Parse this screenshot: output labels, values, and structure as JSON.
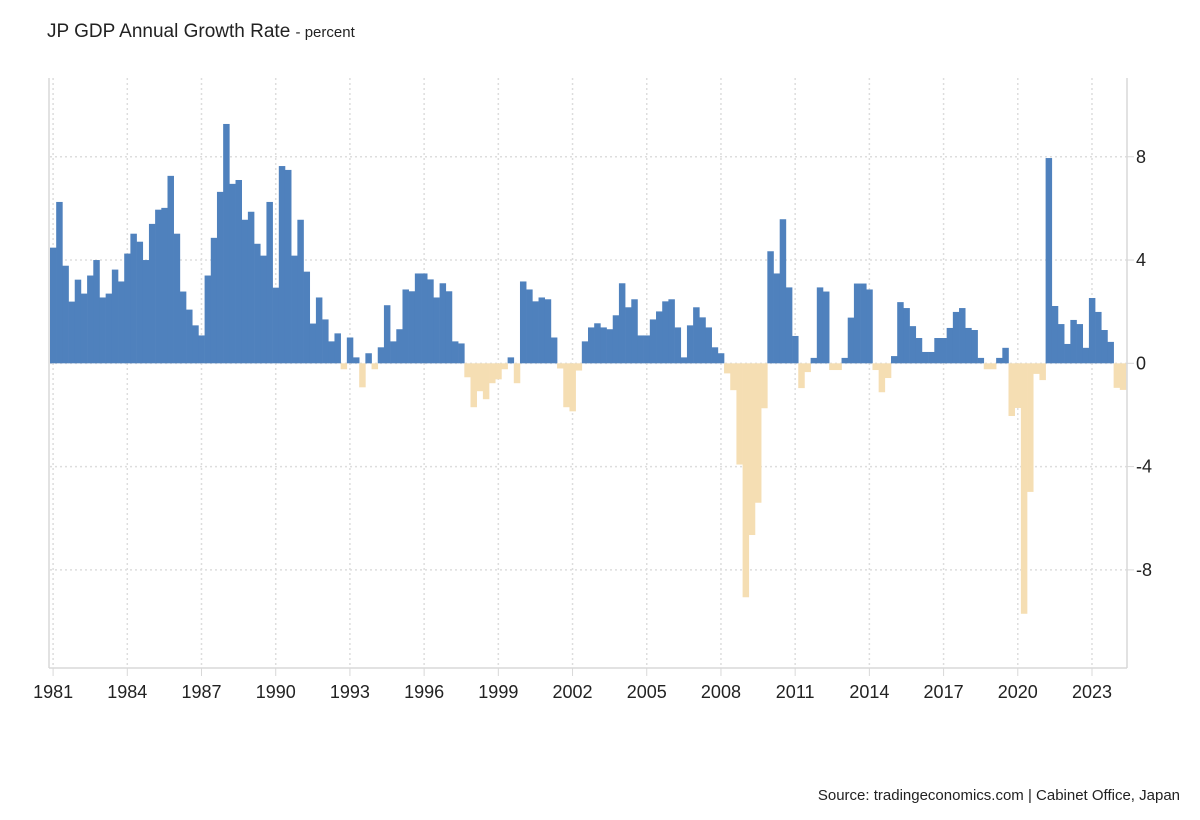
{
  "chart_data": {
    "type": "bar",
    "title": "JP GDP Annual Growth Rate",
    "unit": "- percent",
    "source": "Source: tradingeconomics.com | Cabinet Office, Japan",
    "frequency": "quarterly",
    "start_year": 1981,
    "start_quarter": 1,
    "ylim": [
      -11.8,
      11.05
    ],
    "yticks": [
      8,
      4,
      0,
      -4,
      -8
    ],
    "xticks": [
      "1981",
      "1984",
      "1987",
      "1990",
      "1993",
      "1996",
      "1999",
      "2002",
      "2005",
      "2008",
      "2011",
      "2014",
      "2017",
      "2020",
      "2023"
    ],
    "grid": true,
    "colors": {
      "positive": "#4f81bd",
      "negative": "#f5deb3",
      "grid": "#dddddd",
      "axis": "#d8d8d8"
    },
    "values": [
      4.48,
      6.25,
      3.78,
      2.39,
      3.24,
      2.7,
      3.4,
      4.0,
      2.55,
      2.7,
      3.63,
      3.17,
      4.25,
      5.02,
      4.71,
      4.0,
      5.4,
      5.95,
      6.02,
      7.26,
      5.02,
      2.78,
      2.08,
      1.47,
      1.08,
      3.4,
      4.86,
      6.64,
      9.27,
      6.95,
      7.1,
      5.56,
      5.87,
      4.63,
      4.17,
      6.25,
      2.93,
      7.64,
      7.49,
      4.17,
      5.56,
      3.55,
      1.54,
      2.55,
      1.7,
      0.85,
      1.16,
      -0.23,
      1.0,
      0.23,
      -0.93,
      0.39,
      -0.23,
      0.62,
      2.25,
      0.85,
      1.32,
      2.86,
      2.79,
      3.48,
      3.48,
      3.25,
      2.55,
      3.1,
      2.79,
      0.85,
      0.77,
      -0.54,
      -1.7,
      -1.08,
      -1.39,
      -0.77,
      -0.62,
      -0.23,
      0.23,
      -0.77,
      3.17,
      2.86,
      2.4,
      2.55,
      2.48,
      1.0,
      -0.2,
      -1.7,
      -1.86,
      -0.28,
      0.85,
      1.39,
      1.55,
      1.39,
      1.32,
      1.86,
      3.1,
      2.17,
      2.48,
      1.08,
      1.08,
      1.7,
      2.01,
      2.4,
      2.48,
      1.39,
      0.23,
      1.47,
      2.17,
      1.78,
      1.39,
      0.62,
      0.39,
      -0.39,
      -1.04,
      -3.92,
      -9.06,
      -6.65,
      -5.4,
      -1.74,
      4.34,
      3.48,
      5.58,
      2.94,
      1.06,
      -0.96,
      -0.34,
      0.21,
      2.94,
      2.78,
      -0.26,
      -0.26,
      0.21,
      1.77,
      3.09,
      3.09,
      2.86,
      -0.26,
      -1.12,
      -0.57,
      0.28,
      2.37,
      2.14,
      1.44,
      0.98,
      0.44,
      0.44,
      0.98,
      0.98,
      1.37,
      1.99,
      2.14,
      1.37,
      1.29,
      0.21,
      -0.23,
      -0.23,
      0.21,
      0.6,
      -2.04,
      -1.73,
      -9.7,
      -4.98,
      -0.41,
      -0.65,
      7.95,
      2.22,
      1.52,
      0.75,
      1.68,
      1.52,
      0.6,
      2.53,
      1.99,
      1.29,
      0.83,
      -0.95,
      -1.03
    ]
  }
}
